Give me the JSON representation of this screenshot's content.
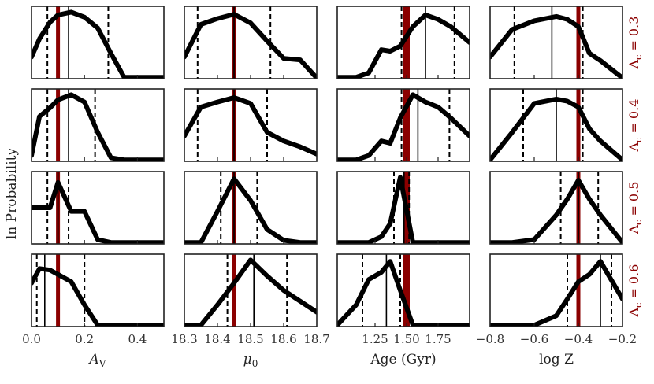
{
  "colors": {
    "true_value": "#8b0000",
    "curve": "#000000",
    "frame": "#222222",
    "row_label": "#8b0000"
  },
  "y_label": "ln Probability",
  "chart_data": {
    "type": "line",
    "grid": false,
    "columns": [
      {
        "xlabel_parts": [
          "A",
          "V"
        ],
        "xlim": [
          0.0,
          0.5
        ],
        "ticks": [
          0.0,
          0.2,
          0.4
        ],
        "tick_labels": [
          "0.0",
          "0.2",
          "0.4"
        ],
        "truth": 0.1
      },
      {
        "xlabel_parts": [
          "μ",
          "0"
        ],
        "xlim": [
          18.3,
          18.7
        ],
        "ticks": [
          18.3,
          18.4,
          18.5,
          18.6,
          18.7
        ],
        "tick_labels": [
          "18.3",
          "18.4",
          "18.5",
          "18.6",
          "18.7"
        ],
        "truth": 18.45
      },
      {
        "xlabel_parts": [
          "Age (Gyr)",
          ""
        ],
        "xlim": [
          0.95,
          2.0
        ],
        "ticks": [
          1.25,
          1.5,
          1.75
        ],
        "tick_labels": [
          "1.25",
          "1.50",
          "1.75"
        ],
        "truth": 1.5
      },
      {
        "xlabel_parts": [
          "log Z",
          ""
        ],
        "xlim": [
          -0.8,
          -0.2
        ],
        "ticks": [
          -0.8,
          -0.6,
          -0.4,
          -0.2
        ],
        "tick_labels": [
          "−0.8",
          "−0.6",
          "−0.4",
          "−0.2"
        ],
        "truth": -0.4
      }
    ],
    "rows": [
      {
        "label_prefix": "Λ",
        "label_sub": "c",
        "label_suffix": " = 0.3",
        "panels": [
          {
            "x": [
              0.0,
              0.03,
              0.07,
              0.1,
              0.15,
              0.2,
              0.25,
              0.3,
              0.35,
              0.4,
              0.5
            ],
            "y": [
              0.3,
              0.55,
              0.78,
              0.88,
              0.92,
              0.85,
              0.7,
              0.35,
              0.02,
              0.02,
              0.02
            ],
            "median": 0.14,
            "bounds": [
              0.06,
              0.29
            ]
          },
          {
            "x": [
              18.3,
              18.35,
              18.4,
              18.45,
              18.5,
              18.55,
              18.6,
              18.65,
              18.7
            ],
            "y": [
              0.3,
              0.75,
              0.83,
              0.89,
              0.77,
              0.52,
              0.28,
              0.26,
              0.01
            ],
            "median": 18.45,
            "bounds": [
              18.34,
              18.56
            ]
          },
          {
            "x": [
              0.95,
              1.1,
              1.2,
              1.3,
              1.37,
              1.45,
              1.55,
              1.65,
              1.75,
              1.85,
              2.0
            ],
            "y": [
              0.02,
              0.02,
              0.08,
              0.4,
              0.38,
              0.45,
              0.72,
              0.88,
              0.82,
              0.72,
              0.5
            ],
            "median": 1.65,
            "bounds": [
              1.46,
              1.88
            ]
          },
          {
            "x": [
              -0.8,
              -0.7,
              -0.6,
              -0.5,
              -0.45,
              -0.4,
              -0.35,
              -0.3,
              -0.2
            ],
            "y": [
              0.3,
              0.68,
              0.8,
              0.86,
              0.82,
              0.72,
              0.35,
              0.25,
              0.01
            ],
            "median": -0.52,
            "bounds": [
              -0.69,
              -0.38
            ]
          }
        ]
      },
      {
        "label_prefix": "Λ",
        "label_sub": "c",
        "label_suffix": " = 0.4",
        "panels": [
          {
            "x": [
              0.0,
              0.03,
              0.07,
              0.1,
              0.15,
              0.2,
              0.25,
              0.3,
              0.35,
              0.4,
              0.5
            ],
            "y": [
              0.08,
              0.62,
              0.74,
              0.85,
              0.92,
              0.82,
              0.4,
              0.05,
              0.02,
              0.02,
              0.02
            ],
            "median": 0.14,
            "bounds": [
              0.06,
              0.24
            ]
          },
          {
            "x": [
              18.3,
              18.35,
              18.4,
              18.45,
              18.5,
              18.55,
              18.6,
              18.65,
              18.7
            ],
            "y": [
              0.35,
              0.75,
              0.82,
              0.88,
              0.8,
              0.4,
              0.28,
              0.2,
              0.1
            ],
            "median": 18.45,
            "bounds": [
              18.34,
              18.55
            ]
          },
          {
            "x": [
              0.95,
              1.1,
              1.2,
              1.3,
              1.37,
              1.45,
              1.55,
              1.65,
              1.75,
              1.85,
              2.0
            ],
            "y": [
              0.02,
              0.02,
              0.08,
              0.28,
              0.25,
              0.6,
              0.92,
              0.82,
              0.75,
              0.6,
              0.35
            ],
            "median": 1.59,
            "bounds": [
              1.46,
              1.84
            ]
          },
          {
            "x": [
              -0.8,
              -0.7,
              -0.6,
              -0.5,
              -0.45,
              -0.4,
              -0.35,
              -0.3,
              -0.2
            ],
            "y": [
              0.02,
              0.4,
              0.8,
              0.86,
              0.83,
              0.75,
              0.45,
              0.28,
              0.02
            ],
            "median": -0.5,
            "bounds": [
              -0.65,
              -0.38
            ]
          }
        ]
      },
      {
        "label_prefix": "Λ",
        "label_sub": "c",
        "label_suffix": " = 0.5",
        "panels": [
          {
            "x": [
              0.0,
              0.03,
              0.07,
              0.1,
              0.15,
              0.2,
              0.25,
              0.3,
              0.35,
              0.4,
              0.5
            ],
            "y": [
              0.5,
              0.5,
              0.5,
              0.85,
              0.45,
              0.45,
              0.06,
              0.02,
              0.02,
              0.02,
              0.02
            ],
            "median": 0.1,
            "bounds": [
              0.06,
              0.14
            ]
          },
          {
            "x": [
              18.3,
              18.35,
              18.4,
              18.45,
              18.5,
              18.55,
              18.6,
              18.65,
              18.7
            ],
            "y": [
              0.02,
              0.02,
              0.45,
              0.9,
              0.6,
              0.2,
              0.05,
              0.02,
              0.02
            ],
            "median": 18.45,
            "bounds": [
              18.41,
              18.52
            ]
          },
          {
            "x": [
              0.95,
              1.1,
              1.2,
              1.3,
              1.37,
              1.45,
              1.55,
              1.65,
              1.75,
              1.85,
              2.0
            ],
            "y": [
              0.02,
              0.02,
              0.02,
              0.1,
              0.28,
              0.92,
              0.02,
              0.02,
              0.02,
              0.02,
              0.02
            ],
            "median": 1.48,
            "bounds": [
              1.4,
              1.52
            ]
          },
          {
            "x": [
              -0.8,
              -0.7,
              -0.6,
              -0.5,
              -0.45,
              -0.4,
              -0.35,
              -0.3,
              -0.2
            ],
            "y": [
              0.02,
              0.02,
              0.06,
              0.4,
              0.62,
              0.88,
              0.62,
              0.4,
              0.02
            ],
            "median": -0.4,
            "bounds": [
              -0.48,
              -0.31
            ]
          }
        ]
      },
      {
        "label_prefix": "Λ",
        "label_sub": "c",
        "label_suffix": " = 0.6",
        "panels": [
          {
            "x": [
              0.0,
              0.03,
              0.07,
              0.1,
              0.15,
              0.2,
              0.25,
              0.3,
              0.35,
              0.4,
              0.5
            ],
            "y": [
              0.6,
              0.8,
              0.78,
              0.72,
              0.62,
              0.3,
              0.02,
              0.02,
              0.02,
              0.02,
              0.02
            ],
            "median": 0.05,
            "bounds": [
              0.02,
              0.2
            ]
          },
          {
            "x": [
              18.3,
              18.35,
              18.4,
              18.45,
              18.5,
              18.55,
              18.6,
              18.65,
              18.7
            ],
            "y": [
              0.02,
              0.02,
              0.3,
              0.6,
              0.92,
              0.7,
              0.5,
              0.35,
              0.2
            ],
            "median": 18.51,
            "bounds": [
              18.43,
              18.61
            ]
          },
          {
            "x": [
              0.95,
              1.1,
              1.2,
              1.3,
              1.37,
              1.45,
              1.55,
              1.65,
              1.75,
              1.85,
              2.0
            ],
            "y": [
              0.02,
              0.3,
              0.65,
              0.75,
              0.9,
              0.5,
              0.02,
              0.02,
              0.02,
              0.02,
              0.02
            ],
            "median": 1.34,
            "bounds": [
              1.15,
              1.45
            ]
          },
          {
            "x": [
              -0.8,
              -0.7,
              -0.6,
              -0.5,
              -0.45,
              -0.4,
              -0.35,
              -0.3,
              -0.2
            ],
            "y": [
              0.02,
              0.02,
              0.02,
              0.15,
              0.38,
              0.62,
              0.72,
              0.9,
              0.38
            ],
            "median": -0.3,
            "bounds": [
              -0.45,
              -0.25
            ]
          }
        ]
      }
    ]
  }
}
